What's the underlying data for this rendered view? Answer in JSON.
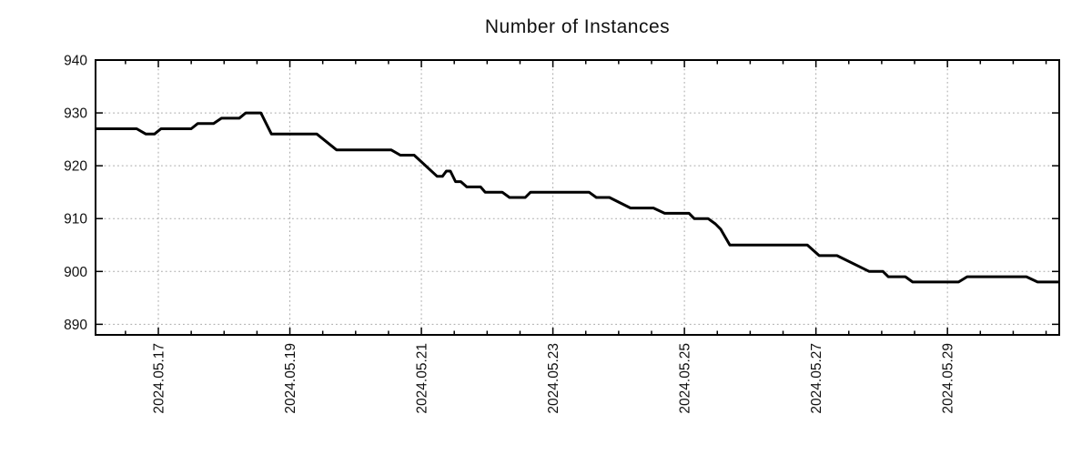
{
  "colors": {
    "line": "#000000",
    "grid": "#a8a8a8",
    "axis": "#000000",
    "text": "#111111",
    "background": "#ffffff"
  },
  "chart_data": {
    "type": "line",
    "title": "Number of Instances",
    "xlabel": "",
    "ylabel": "",
    "grid": true,
    "legend": false,
    "x_axis": {
      "unit": "days since 2024-05-16 00:00",
      "range": [
        0.045,
        14.7
      ],
      "major_ticks": [
        {
          "t": 1,
          "label": "2024.05.17"
        },
        {
          "t": 3,
          "label": "2024.05.19"
        },
        {
          "t": 5,
          "label": "2024.05.21"
        },
        {
          "t": 7,
          "label": "2024.05.23"
        },
        {
          "t": 9,
          "label": "2024.05.25"
        },
        {
          "t": 11,
          "label": "2024.05.27"
        },
        {
          "t": 13,
          "label": "2024.05.29"
        }
      ],
      "minor_tick_step": 0.5,
      "label_rotation": -90
    },
    "y_axis": {
      "range": [
        888,
        940
      ],
      "ticks": [
        890,
        900,
        910,
        920,
        930,
        940
      ]
    },
    "series": [
      {
        "name": "instances",
        "points": [
          [
            0.045,
            927
          ],
          [
            0.67,
            927
          ],
          [
            0.81,
            926
          ],
          [
            0.94,
            926
          ],
          [
            1.04,
            927
          ],
          [
            1.5,
            927
          ],
          [
            1.6,
            928
          ],
          [
            1.84,
            928
          ],
          [
            1.96,
            929
          ],
          [
            2.23,
            929
          ],
          [
            2.33,
            930
          ],
          [
            2.56,
            930
          ],
          [
            2.72,
            926
          ],
          [
            3.41,
            926
          ],
          [
            3.71,
            923
          ],
          [
            4.54,
            923
          ],
          [
            4.68,
            922
          ],
          [
            4.89,
            922
          ],
          [
            5.24,
            918
          ],
          [
            5.32,
            918
          ],
          [
            5.38,
            919
          ],
          [
            5.44,
            919
          ],
          [
            5.52,
            917
          ],
          [
            5.6,
            917
          ],
          [
            5.69,
            916
          ],
          [
            5.9,
            916
          ],
          [
            5.97,
            915
          ],
          [
            6.23,
            915
          ],
          [
            6.34,
            914
          ],
          [
            6.58,
            914
          ],
          [
            6.66,
            915
          ],
          [
            7.55,
            915
          ],
          [
            7.66,
            914
          ],
          [
            7.86,
            914
          ],
          [
            8.18,
            912
          ],
          [
            8.53,
            912
          ],
          [
            8.7,
            911
          ],
          [
            9.07,
            911
          ],
          [
            9.15,
            910
          ],
          [
            9.36,
            910
          ],
          [
            9.47,
            909
          ],
          [
            9.55,
            908
          ],
          [
            9.69,
            905
          ],
          [
            10.87,
            905
          ],
          [
            11.05,
            903
          ],
          [
            11.32,
            903
          ],
          [
            11.81,
            900
          ],
          [
            12.02,
            900
          ],
          [
            12.1,
            899
          ],
          [
            12.36,
            899
          ],
          [
            12.47,
            898
          ],
          [
            13.17,
            898
          ],
          [
            13.3,
            899
          ],
          [
            14.2,
            899
          ],
          [
            14.37,
            898
          ],
          [
            14.7,
            898
          ]
        ]
      }
    ]
  }
}
